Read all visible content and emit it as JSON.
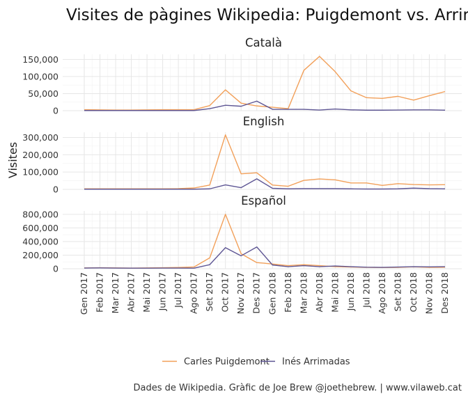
{
  "chart_data": {
    "type": "line",
    "title": "Visites de pàgines Wikipedia: Puigdemont vs. Arrimadas",
    "ylabel": "Visites",
    "xlabel": "",
    "caption": "Dades de Wikipedia. Gràfic de Joe Brew @joethebrew. | www.vilaweb.cat",
    "categories": [
      "Gen 2017",
      "Feb 2017",
      "Mar 2017",
      "Abr 2017",
      "Mai 2017",
      "Jun 2017",
      "Jul 2017",
      "Ago 2017",
      "Set 2017",
      "Oct 2017",
      "Nov 2017",
      "Des 2017",
      "Gen 2018",
      "Feb 2018",
      "Mar 2018",
      "Abr 2018",
      "Mai 2018",
      "Jun 2018",
      "Jul 2018",
      "Ago 2018",
      "Set 2018",
      "Oct 2018",
      "Nov 2018",
      "Des 2018"
    ],
    "legend": {
      "placement": "bottom"
    },
    "grid": true,
    "series_colors": {
      "Carles Puigdemont": "#f2a05a",
      "Inés Arrimadas": "#5e5694"
    },
    "facets": [
      {
        "name": "Català",
        "ylim": [
          0,
          165000
        ],
        "yticks": [
          0,
          50000,
          100000,
          150000
        ],
        "ytick_labels": [
          "0",
          "50,000",
          "100,000",
          "150,000"
        ],
        "series": [
          {
            "name": "Carles Puigdemont",
            "values": [
              3000,
              2500,
              2000,
              2000,
              2500,
              3000,
              3000,
              3000,
              15000,
              61000,
              22000,
              14000,
              10000,
              6000,
              118000,
              159000,
              114000,
              58000,
              38000,
              36000,
              42000,
              31000,
              44000,
              56000
            ]
          },
          {
            "name": "Inés Arrimadas",
            "values": [
              500,
              500,
              500,
              500,
              500,
              500,
              500,
              500,
              6000,
              16000,
              13000,
              28000,
              4000,
              4000,
              4000,
              2000,
              5000,
              2500,
              1500,
              1500,
              2000,
              2500,
              2500,
              1500
            ]
          }
        ]
      },
      {
        "name": "English",
        "ylim": [
          0,
          330000
        ],
        "yticks": [
          0,
          100000,
          200000,
          300000
        ],
        "ytick_labels": [
          "0",
          "100,000",
          "200,000",
          "300,000"
        ],
        "series": [
          {
            "name": "Carles Puigdemont",
            "values": [
              3000,
              3000,
              3000,
              3000,
              3000,
              3000,
              4000,
              8000,
              25000,
              315000,
              90000,
              96000,
              25000,
              18000,
              52000,
              60000,
              55000,
              37000,
              37000,
              23000,
              33000,
              28000,
              26000,
              27000
            ]
          },
          {
            "name": "Inés Arrimadas",
            "values": [
              1000,
              1000,
              1000,
              1000,
              1000,
              1000,
              1000,
              1000,
              3000,
              26000,
              10000,
              61000,
              6000,
              3000,
              4000,
              4000,
              4000,
              3000,
              2000,
              2000,
              3000,
              7000,
              4000,
              3000
            ]
          }
        ]
      },
      {
        "name": "Español",
        "ylim": [
          0,
          850000
        ],
        "yticks": [
          0,
          200000,
          400000,
          600000,
          800000
        ],
        "ytick_labels": [
          "0",
          "200,000",
          "400,000",
          "600,000",
          "800,000"
        ],
        "series": [
          {
            "name": "Carles Puigdemont",
            "values": [
              12000,
              14000,
              12000,
              10000,
              12000,
              14000,
              18000,
              26000,
              160000,
              800000,
              220000,
              90000,
              70000,
              45000,
              60000,
              45000,
              30000,
              25000,
              20000,
              18000,
              20000,
              28000,
              20000,
              22000
            ]
          },
          {
            "name": "Inés Arrimadas",
            "values": [
              10000,
              12000,
              10000,
              8000,
              8000,
              10000,
              10000,
              8000,
              60000,
              310000,
              190000,
              320000,
              55000,
              30000,
              45000,
              30000,
              40000,
              30000,
              22000,
              20000,
              25000,
              30000,
              28000,
              30000
            ]
          }
        ]
      }
    ]
  }
}
